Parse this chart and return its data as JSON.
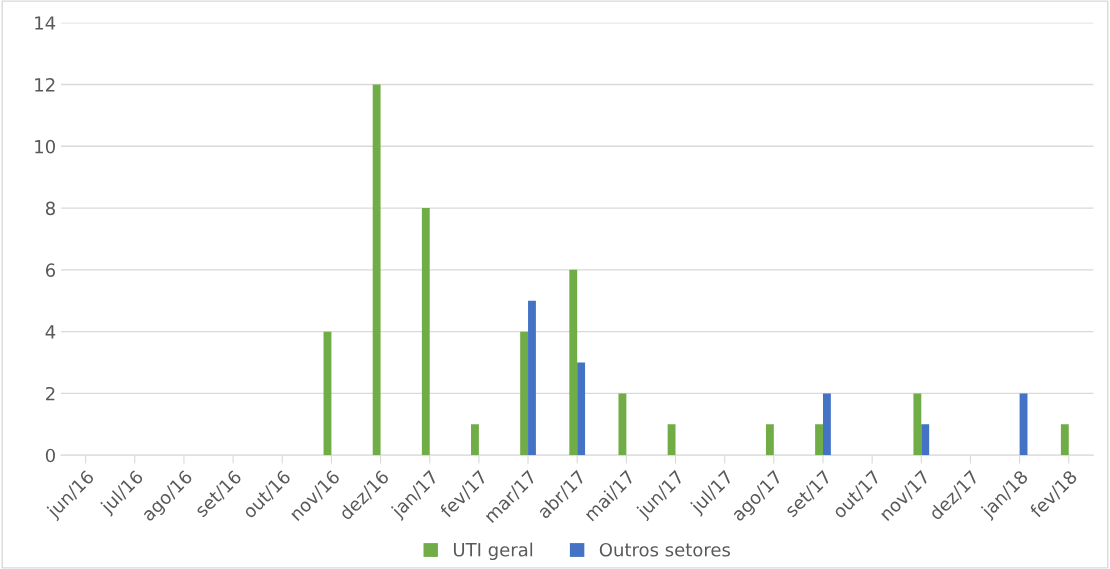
{
  "chart_data": {
    "type": "bar",
    "categories": [
      "jun/16",
      "jul/16",
      "ago/16",
      "set/16",
      "out/16",
      "nov/16",
      "dez/16",
      "jan/17",
      "fev/17",
      "mar/17",
      "abr/17",
      "mai/17",
      "jun/17",
      "jul/17",
      "ago/17",
      "set/17",
      "out/17",
      "nov/17",
      "dez/17",
      "jan/18",
      "fev/18"
    ],
    "series": [
      {
        "name": "UTI geral",
        "color": "#70ad47",
        "values": [
          0,
          0,
          0,
          0,
          0,
          4,
          12,
          8,
          1,
          4,
          6,
          2,
          1,
          0,
          1,
          1,
          0,
          2,
          0,
          0,
          1
        ]
      },
      {
        "name": "Outros setores",
        "color": "#4472c4",
        "values": [
          0,
          0,
          0,
          0,
          0,
          0,
          0,
          0,
          0,
          5,
          3,
          0,
          0,
          0,
          0,
          2,
          0,
          1,
          0,
          2,
          0
        ]
      }
    ],
    "ylim": [
      0,
      14
    ],
    "yticks": [
      0,
      2,
      4,
      6,
      8,
      10,
      12,
      14
    ],
    "grid": "y",
    "legend": "bottom"
  }
}
